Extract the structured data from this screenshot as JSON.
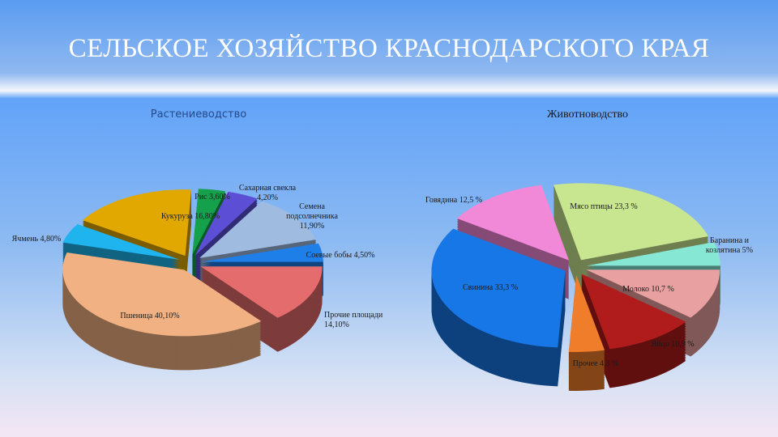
{
  "title": "СЕЛЬСКОЕ ХОЗЯЙСТВО КРАСНОДАРСКОГО КРАЯ",
  "chart_data": [
    {
      "type": "pie",
      "title": "Растениеводство",
      "three_d": true,
      "exploded": true,
      "slices": [
        {
          "label": "Прочие площади 14,10%",
          "value": 14.1,
          "color": "#e46c6c"
        },
        {
          "label": "Пшеница 40,10%",
          "value": 40.1,
          "color": "#f2b183"
        },
        {
          "label": "Ячмень 4,80%",
          "value": 4.8,
          "color": "#1fb4ee"
        },
        {
          "label": "Кукуруза 16,80%",
          "value": 16.8,
          "color": "#e0a800"
        },
        {
          "label": "Рис 3,60%",
          "value": 3.6,
          "color": "#15a04c"
        },
        {
          "label": "Сахарная свекла 4,20%",
          "value": 4.2,
          "color": "#5c4fd6"
        },
        {
          "label": "Семена подсолнечника 11,90%",
          "value": 11.9,
          "color": "#9fbbe0"
        },
        {
          "label": "Соевые бобы 4,50%",
          "value": 4.5,
          "color": "#1f7fe8"
        }
      ]
    },
    {
      "type": "pie",
      "title": "Животноводство",
      "three_d": true,
      "exploded": true,
      "slices": [
        {
          "label": "Баранина и козлятина 5%",
          "value": 5,
          "color": "#86e8d4"
        },
        {
          "label": "Молоко 10,7 %",
          "value": 10.7,
          "color": "#e9a0a0"
        },
        {
          "label": "Яйцо 10,9 %",
          "value": 10.9,
          "color": "#b01c1c"
        },
        {
          "label": "Прочее 4,3 %",
          "value": 4.3,
          "color": "#ef7d2a"
        },
        {
          "label": "Свинина 33,3 %",
          "value": 33.3,
          "color": "#1877e6"
        },
        {
          "label": "Говядина 12,5 %",
          "value": 12.5,
          "color": "#f288d8"
        },
        {
          "label": "Мясо птицы 23,3 %",
          "value": 23.3,
          "color": "#c8e690"
        }
      ]
    }
  ]
}
